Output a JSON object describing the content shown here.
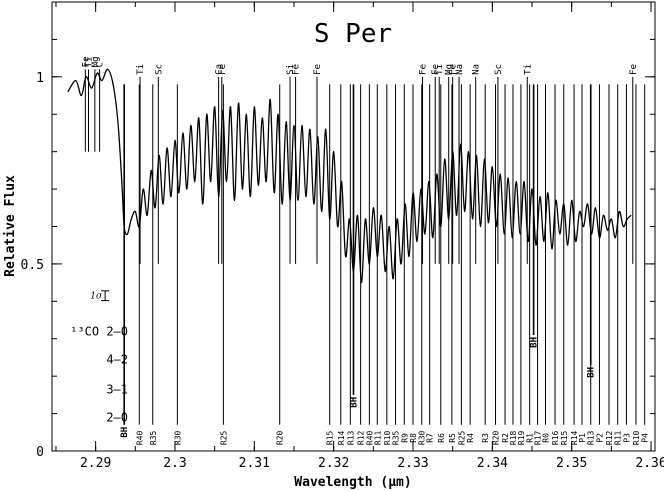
{
  "chart_data": {
    "type": "line",
    "title": "S Per",
    "xlabel": "Wavelength (μm)",
    "ylabel": "Relative Flux",
    "xlim": [
      2.2845,
      2.3605
    ],
    "ylim": [
      0,
      1.2
    ],
    "x_ticks": [
      {
        "v": 2.29,
        "label": "2.29"
      },
      {
        "v": 2.3,
        "label": "2.3"
      },
      {
        "v": 2.31,
        "label": "2.31"
      },
      {
        "v": 2.32,
        "label": "2.32"
      },
      {
        "v": 2.33,
        "label": "2.33"
      },
      {
        "v": 2.34,
        "label": "2.34"
      },
      {
        "v": 2.35,
        "label": "2.35"
      },
      {
        "v": 2.36,
        "label": "2.36"
      }
    ],
    "y_ticks": [
      {
        "v": 0,
        "label": "0"
      },
      {
        "v": 0.5,
        "label": "0.5"
      },
      {
        "v": 1,
        "label": "1"
      }
    ],
    "sigma_label": "1σ",
    "sigma_bar": {
      "x": 2.2912,
      "y": 0.415,
      "half": 0.013
    },
    "series": [
      {
        "x": [
          2.2865,
          2.2875,
          2.2882,
          2.2888,
          2.2895,
          2.2902,
          2.2908,
          2.2915,
          2.2922,
          2.2928,
          2.2933,
          2.2936,
          2.294,
          2.2945,
          2.295,
          2.2955,
          2.296,
          2.2965,
          2.297,
          2.2975,
          2.298,
          2.2985,
          2.299,
          2.2995,
          2.3,
          2.3005,
          2.301,
          2.3015,
          2.302,
          2.3025,
          2.303,
          2.3035,
          2.304,
          2.3045,
          2.305,
          2.3055,
          2.306,
          2.3065,
          2.307,
          2.3075,
          2.308,
          2.3085,
          2.309,
          2.3095,
          2.31,
          2.3105,
          2.311,
          2.3115,
          2.312,
          2.3125,
          2.313,
          2.3135,
          2.314,
          2.3145,
          2.315,
          2.3155,
          2.316,
          2.3165,
          2.317,
          2.3175,
          2.318,
          2.3185,
          2.319,
          2.3195,
          2.32,
          2.3205,
          2.321,
          2.3215,
          2.322,
          2.3225,
          2.323,
          2.3235,
          2.324,
          2.3245,
          2.325,
          2.3255,
          2.326,
          2.3265,
          2.327,
          2.3275,
          2.328,
          2.3285,
          2.329,
          2.3295,
          2.33,
          2.3305,
          2.331,
          2.3315,
          2.332,
          2.3325,
          2.333,
          2.3335,
          2.334,
          2.3345,
          2.335,
          2.3355,
          2.336,
          2.3365,
          2.337,
          2.3375,
          2.338,
          2.3385,
          2.339,
          2.3395,
          2.34,
          2.3405,
          2.341,
          2.3415,
          2.342,
          2.3425,
          2.343,
          2.3435,
          2.344,
          2.3445,
          2.345,
          2.3455,
          2.346,
          2.3465,
          2.347,
          2.3475,
          2.348,
          2.3485,
          2.349,
          2.3495,
          2.35,
          2.3505,
          2.351,
          2.3515,
          2.352,
          2.3525,
          2.353,
          2.3535,
          2.354,
          2.3545,
          2.355,
          2.3555,
          2.356,
          2.3565,
          2.357,
          2.3575
        ],
        "y": [
          0.96,
          0.99,
          0.95,
          1.0,
          0.97,
          1.01,
          0.99,
          1.02,
          0.98,
          0.88,
          0.72,
          0.6,
          0.58,
          0.62,
          0.64,
          0.6,
          0.7,
          0.63,
          0.75,
          0.65,
          0.79,
          0.66,
          0.81,
          0.68,
          0.83,
          0.69,
          0.85,
          0.7,
          0.87,
          0.72,
          0.89,
          0.66,
          0.9,
          0.72,
          0.92,
          0.68,
          0.91,
          0.72,
          0.92,
          0.67,
          0.93,
          0.7,
          0.9,
          0.68,
          0.92,
          0.71,
          0.89,
          0.72,
          0.94,
          0.69,
          0.9,
          0.66,
          0.88,
          0.67,
          0.87,
          0.67,
          0.87,
          0.68,
          0.86,
          0.66,
          0.84,
          0.64,
          0.86,
          0.62,
          0.8,
          0.6,
          0.72,
          0.52,
          0.62,
          0.48,
          0.63,
          0.45,
          0.62,
          0.5,
          0.65,
          0.52,
          0.63,
          0.48,
          0.6,
          0.46,
          0.62,
          0.5,
          0.66,
          0.52,
          0.69,
          0.56,
          0.7,
          0.58,
          0.72,
          0.57,
          0.74,
          0.6,
          0.78,
          0.62,
          0.8,
          0.63,
          0.82,
          0.64,
          0.8,
          0.62,
          0.79,
          0.6,
          0.78,
          0.61,
          0.76,
          0.6,
          0.74,
          0.58,
          0.73,
          0.57,
          0.72,
          0.58,
          0.72,
          0.56,
          0.7,
          0.55,
          0.68,
          0.56,
          0.69,
          0.54,
          0.67,
          0.58,
          0.66,
          0.55,
          0.67,
          0.56,
          0.64,
          0.6,
          0.66,
          0.58,
          0.65,
          0.57,
          0.63,
          0.59,
          0.62,
          0.57,
          0.64,
          0.6,
          0.62,
          0.63
        ]
      }
    ],
    "atomic_lines": [
      {
        "label": "Fe",
        "x": 2.2887,
        "y0": 0.8,
        "y1": 1.02
      },
      {
        "label": "Ti",
        "x": 2.2891,
        "y0": 0.8,
        "y1": 1.02
      },
      {
        "label": "Mg",
        "x": 2.2899,
        "y0": 0.8,
        "y1": 1.02
      },
      {
        "label": "C",
        "x": 2.2905,
        "y0": 0.8,
        "y1": 1.02
      },
      {
        "label": "Ti",
        "x": 2.2956,
        "y0": 0.5,
        "y1": 1.0
      },
      {
        "label": "Sc",
        "x": 2.2979,
        "y0": 0.5,
        "y1": 1.0
      },
      {
        "label": "Ca",
        "x": 2.3055,
        "y0": 0.5,
        "y1": 1.0
      },
      {
        "label": "Fe",
        "x": 2.3059,
        "y0": 0.5,
        "y1": 1.0
      },
      {
        "label": "Si",
        "x": 2.3145,
        "y0": 0.5,
        "y1": 1.0
      },
      {
        "label": "Fe",
        "x": 2.3152,
        "y0": 0.5,
        "y1": 1.0
      },
      {
        "label": "Fe",
        "x": 2.3179,
        "y0": 0.5,
        "y1": 1.0
      },
      {
        "label": "Fe",
        "x": 2.3312,
        "y0": 0.5,
        "y1": 1.0
      },
      {
        "label": "Fe",
        "x": 2.3328,
        "y0": 0.5,
        "y1": 1.0
      },
      {
        "label": "Ti",
        "x": 2.3333,
        "y0": 0.5,
        "y1": 1.0
      },
      {
        "label": "Mg",
        "x": 2.3345,
        "y0": 0.5,
        "y1": 1.0
      },
      {
        "label": "Fe",
        "x": 2.335,
        "y0": 0.5,
        "y1": 1.0
      },
      {
        "label": "Na",
        "x": 2.3358,
        "y0": 0.5,
        "y1": 1.0
      },
      {
        "label": "Na",
        "x": 2.3379,
        "y0": 0.5,
        "y1": 1.0
      },
      {
        "label": "Sc",
        "x": 2.3407,
        "y0": 0.5,
        "y1": 1.0
      },
      {
        "label": "Ti",
        "x": 2.3444,
        "y0": 0.5,
        "y1": 1.0
      },
      {
        "label": "Fe",
        "x": 2.3577,
        "y0": 0.5,
        "y1": 1.0
      }
    ],
    "co_bands": [
      {
        "label": "¹³CO 2–0",
        "y": 0.32
      },
      {
        "label": "4–2",
        "y": 0.245
      },
      {
        "label": "3–1",
        "y": 0.165
      },
      {
        "label": "2–0",
        "y": 0.09
      }
    ],
    "bandheads": [
      {
        "label": "BH",
        "x": 2.2936,
        "y0": 0.07,
        "y1": 0.98
      },
      {
        "label": "BH",
        "x": 2.3225,
        "y0": 0.15,
        "y1": 0.98
      },
      {
        "label": "BH",
        "x": 2.3452,
        "y0": 0.31,
        "y1": 0.98
      },
      {
        "label": "BH",
        "x": 2.3524,
        "y0": 0.23,
        "y1": 0.98
      }
    ],
    "co_lines": [
      {
        "label": "R40",
        "x": 2.2955
      },
      {
        "label": "R35",
        "x": 2.2972
      },
      {
        "label": "R30",
        "x": 2.3003
      },
      {
        "label": "R25",
        "x": 2.3061
      },
      {
        "label": "R20",
        "x": 2.3132
      },
      {
        "label": "R15",
        "x": 2.3195
      },
      {
        "label": "R14",
        "x": 2.3209
      },
      {
        "label": "R13",
        "x": 2.3221
      },
      {
        "label": "R12",
        "x": 2.3234
      },
      {
        "label": "R40",
        "x": 2.3245
      },
      {
        "label": "R11",
        "x": 2.3255
      },
      {
        "label": "R10",
        "x": 2.3267
      },
      {
        "label": "R35",
        "x": 2.3278
      },
      {
        "label": "R9",
        "x": 2.3289
      },
      {
        "label": "R8",
        "x": 2.33
      },
      {
        "label": "R30",
        "x": 2.3311
      },
      {
        "label": "R7",
        "x": 2.3321
      },
      {
        "label": "R6",
        "x": 2.3335
      },
      {
        "label": "R5",
        "x": 2.3349
      },
      {
        "label": "R25",
        "x": 2.3361
      },
      {
        "label": "R4",
        "x": 2.3372
      },
      {
        "label": "R3",
        "x": 2.3391
      },
      {
        "label": "R20",
        "x": 2.3404
      },
      {
        "label": "R2",
        "x": 2.3416
      },
      {
        "label": "R18",
        "x": 2.3426
      },
      {
        "label": "R19",
        "x": 2.3436
      },
      {
        "label": "R1",
        "x": 2.3447
      },
      {
        "label": "R17",
        "x": 2.3457
      },
      {
        "label": "R0",
        "x": 2.3467
      },
      {
        "label": "R16",
        "x": 2.3479
      },
      {
        "label": "R15",
        "x": 2.349
      },
      {
        "label": "R14",
        "x": 2.3503
      },
      {
        "label": "P1",
        "x": 2.3513
      },
      {
        "label": "R13",
        "x": 2.3524
      },
      {
        "label": "P2",
        "x": 2.3535
      },
      {
        "label": "R12",
        "x": 2.3547
      },
      {
        "label": "R11",
        "x": 2.3558
      },
      {
        "label": "P3",
        "x": 2.3569
      },
      {
        "label": "R10",
        "x": 2.3581
      },
      {
        "label": "P4",
        "x": 2.3592
      }
    ]
  }
}
